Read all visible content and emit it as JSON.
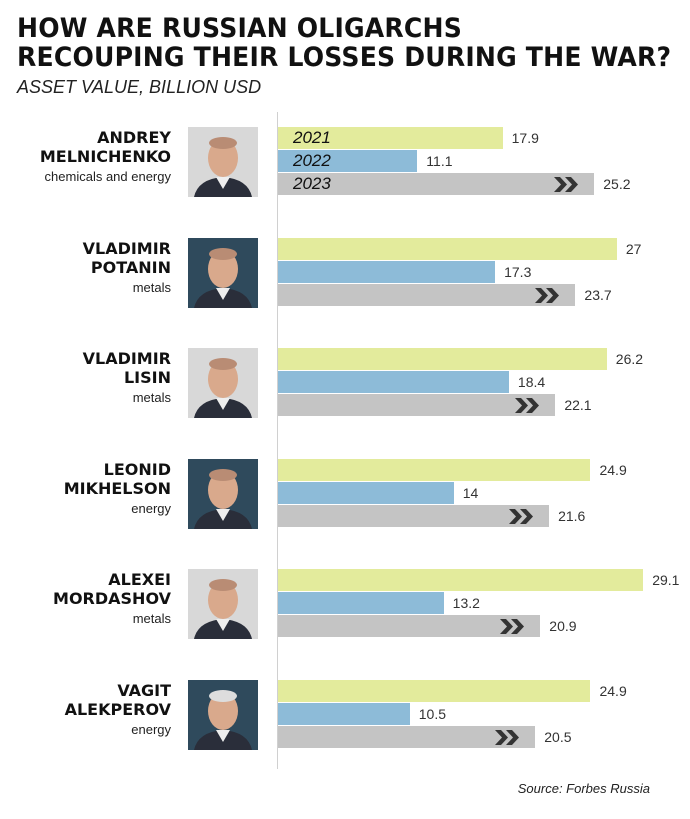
{
  "title_line1": "HOW ARE RUSSIAN OLIGARCHS",
  "title_line2": "RECOUPING THEIR LOSSES DURING THE WAR?",
  "subtitle": "ASSET VALUE, BILLION USD",
  "source": "Source: Forbes Russia",
  "colors": {
    "2021": "#e3eb9c",
    "2022": "#8dbbd8",
    "2023": "#c4c4c4",
    "chevron": "#333333"
  },
  "chart_data": {
    "type": "bar",
    "orientation": "horizontal",
    "title": "HOW ARE RUSSIAN OLIGARCHS RECOUPING THEIR LOSSES DURING THE WAR?",
    "ylabel": "ASSET VALUE, BILLION USD",
    "legend": [
      "2021",
      "2022",
      "2023"
    ],
    "categories": [
      {
        "first": "ANDREY",
        "last": "MELNICHENKO",
        "sector": "chemicals and energy"
      },
      {
        "first": "VLADIMIR",
        "last": "POTANIN",
        "sector": "metals"
      },
      {
        "first": "VLADIMIR",
        "last": "LISIN",
        "sector": "metals"
      },
      {
        "first": "LEONID",
        "last": "MIKHELSON",
        "sector": "energy"
      },
      {
        "first": "ALEXEI",
        "last": "MORDASHOV",
        "sector": "metals"
      },
      {
        "first": "VAGIT",
        "last": "ALEKPEROV",
        "sector": "energy"
      }
    ],
    "series": [
      {
        "name": "2021",
        "values": [
          17.9,
          27,
          26.2,
          24.9,
          29.1,
          24.9
        ]
      },
      {
        "name": "2022",
        "values": [
          11.1,
          17.3,
          18.4,
          14,
          13.2,
          10.5
        ]
      },
      {
        "name": "2023",
        "values": [
          25.2,
          23.7,
          22.1,
          21.6,
          20.9,
          20.5
        ]
      }
    ],
    "xlim": [
      0,
      29.1
    ]
  }
}
